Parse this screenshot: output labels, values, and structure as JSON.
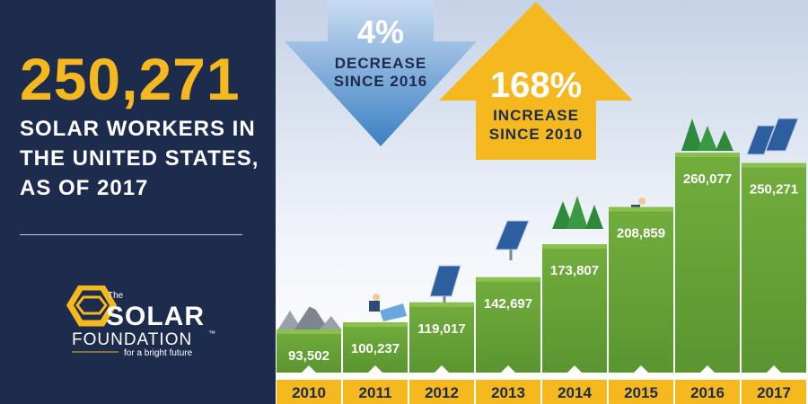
{
  "headline": {
    "number": "250,271",
    "lines": [
      "SOLAR WORKERS IN",
      "THE UNITED STATES,",
      "AS OF 2017"
    ]
  },
  "logo": {
    "small": "The",
    "name": "SOLAR",
    "sub": "FOUNDATION",
    "tm": "™",
    "tagline": "for a bright future"
  },
  "callouts": {
    "decrease": {
      "value": "4%",
      "line1": "DECREASE",
      "line2": "SINCE 2016"
    },
    "increase": {
      "value": "168%",
      "line1": "INCREASE",
      "line2": "SINCE 2010"
    }
  },
  "colors": {
    "navy": "#1d2b4c",
    "gold": "#f5b91f",
    "green": "#6aa43a",
    "blue_arrow": "#4d8ec9"
  },
  "chart_data": {
    "type": "bar",
    "categories": [
      "2010",
      "2011",
      "2012",
      "2013",
      "2014",
      "2015",
      "2016",
      "2017"
    ],
    "values": [
      93502,
      100237,
      119017,
      142697,
      173807,
      208859,
      260077,
      250271
    ],
    "labels": [
      "93,502",
      "100,237",
      "119,017",
      "142,697",
      "173,807",
      "208,859",
      "260,077",
      "250,271"
    ],
    "title": "",
    "xlabel": "",
    "ylabel": ""
  }
}
